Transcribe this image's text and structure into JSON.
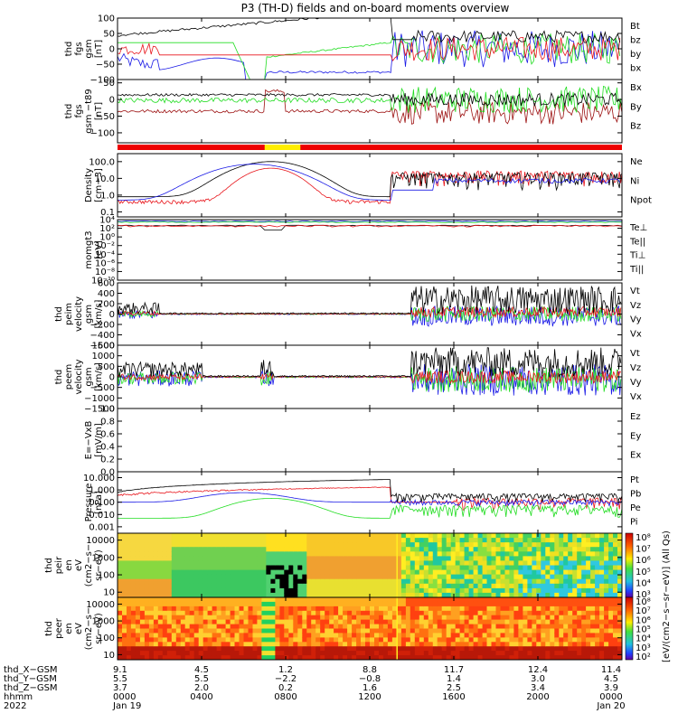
{
  "title": "P3 (TH-D) fields and on-board moments overview",
  "colors": {
    "black": "#000000",
    "red": "#e8151b",
    "green": "#22dd22",
    "blue": "#1a1ae6",
    "darkred": "#9c1010"
  },
  "chart_data": {
    "type": "line",
    "time_range_hours": [
      0,
      24
    ],
    "panels": [
      {
        "id": "fgs",
        "ylabel": [
          "thd",
          "fgs",
          "gsm",
          "[nT]"
        ],
        "ylim": [
          -100,
          100
        ],
        "yscale": "linear",
        "ticks": [
          "100",
          "50",
          "0",
          "−50",
          "−100"
        ],
        "tickvals": [
          100,
          50,
          0,
          -50,
          -100
        ],
        "legend": [
          {
            "label": "Bt",
            "color": "black"
          },
          {
            "label": "bz",
            "color": "red"
          },
          {
            "label": "by",
            "color": "green"
          },
          {
            "label": "bx",
            "color": "blue"
          }
        ]
      },
      {
        "id": "fgs-t89",
        "ylabel": [
          "thd",
          "fgs",
          "gsm −t89",
          "[nT]"
        ],
        "ylim": [
          -130,
          60
        ],
        "yscale": "linear",
        "ticks": [
          "50",
          "0",
          "−50",
          "−100"
        ],
        "tickvals": [
          50,
          0,
          -50,
          -100
        ],
        "legend": [
          {
            "label": "Bx",
            "color": "black"
          },
          {
            "label": "By",
            "color": "green"
          },
          {
            "label": "Bz",
            "color": "darkred"
          }
        ]
      },
      {
        "id": "density",
        "ylabel": [
          "Density",
          "[cm−3]"
        ],
        "ylim": [
          0.05,
          300
        ],
        "yscale": "log",
        "ticks": [
          "100.0",
          "10.0",
          "1.0",
          "0.1"
        ],
        "tickvals": [
          100,
          10,
          1,
          0.1
        ],
        "legend": [
          {
            "label": "Ne",
            "color": "red"
          },
          {
            "label": "Ni",
            "color": "black"
          },
          {
            "label": "Npot",
            "color": "blue"
          }
        ]
      },
      {
        "id": "temp",
        "ylabel": [
          "momgt3",
          "[eV]"
        ],
        "ylim": [
          1e-10,
          10000
        ],
        "yscale": "log",
        "ticks": [
          "10⁴",
          "10²",
          "10⁰",
          "10⁻²",
          "10⁻⁴",
          "10⁻⁶",
          "10⁻⁸",
          "10⁻¹⁰"
        ],
        "tickvals": [
          4,
          2,
          0,
          -2,
          -4,
          -6,
          -8,
          -10
        ],
        "legend": [
          {
            "label": "Te⊥",
            "color": "red"
          },
          {
            "label": "Te||",
            "color": "black"
          },
          {
            "label": "Ti⊥",
            "color": "blue"
          },
          {
            "label": "Ti||",
            "color": "green"
          }
        ]
      },
      {
        "id": "vi",
        "ylabel": [
          "thd",
          "peim",
          "velocity",
          "gsm",
          "[km/s]"
        ],
        "ylim": [
          -600,
          600
        ],
        "yscale": "linear",
        "ticks": [
          "600",
          "400",
          "200",
          "0",
          "−200",
          "−400",
          "−600"
        ],
        "tickvals": [
          600,
          400,
          200,
          0,
          -200,
          -400,
          -600
        ],
        "legend": [
          {
            "label": "Vt",
            "color": "black"
          },
          {
            "label": "Vz",
            "color": "red"
          },
          {
            "label": "Vy",
            "color": "green"
          },
          {
            "label": "Vx",
            "color": "blue"
          }
        ]
      },
      {
        "id": "ve",
        "ylabel": [
          "thd",
          "peem",
          "velocity",
          "gsm",
          "[km/s]"
        ],
        "ylim": [
          -1500,
          1500
        ],
        "yscale": "linear",
        "ticks": [
          "1500",
          "1000",
          "500",
          "0",
          "−500",
          "−1000",
          "−1500"
        ],
        "tickvals": [
          1500,
          1000,
          500,
          0,
          -500,
          -1000,
          -1500
        ],
        "legend": [
          {
            "label": "Vt",
            "color": "black"
          },
          {
            "label": "Vz",
            "color": "red"
          },
          {
            "label": "Vy",
            "color": "green"
          },
          {
            "label": "Vx",
            "color": "blue"
          }
        ]
      },
      {
        "id": "efield",
        "ylabel": [
          "E=−VxB",
          "[mV/m]"
        ],
        "ylim": [
          0,
          1
        ],
        "yscale": "linear",
        "ticks": [
          "1.0",
          "0.8",
          "0.6",
          "0.4",
          "0.2",
          "0.0"
        ],
        "tickvals": [
          1,
          0.8,
          0.6,
          0.4,
          0.2,
          0
        ],
        "legend": [
          {
            "label": "Ez",
            "color": "red"
          },
          {
            "label": "Ey",
            "color": "green"
          },
          {
            "label": "Ex",
            "color": "blue"
          }
        ]
      },
      {
        "id": "pressure",
        "ylabel": [
          "Pressure",
          "[nPa]"
        ],
        "ylim": [
          0.0003,
          30
        ],
        "yscale": "log",
        "ticks": [
          "10.000",
          "1.000",
          "0.100",
          "0.010",
          "0.001"
        ],
        "tickvals": [
          10,
          1,
          0.1,
          0.01,
          0.001
        ],
        "legend": [
          {
            "label": "Pt",
            "color": "black"
          },
          {
            "label": "Pb",
            "color": "red"
          },
          {
            "label": "Pe",
            "color": "green"
          },
          {
            "label": "Pi",
            "color": "blue"
          }
        ]
      },
      {
        "id": "ion-spec",
        "ylabel": [
          "thd",
          "peir",
          "en",
          "eV",
          "(cm2−s−",
          "sr−eV)"
        ],
        "ylim": [
          5,
          25000
        ],
        "yscale": "log",
        "ticks": [
          "10000",
          "1000",
          "100",
          "10"
        ],
        "tickvals": [
          10000,
          1000,
          100,
          10
        ],
        "legend": []
      },
      {
        "id": "ele-spec",
        "ylabel": [
          "thd",
          "peer",
          "en",
          "eV",
          "(cm2−s−",
          "sr−eV)"
        ],
        "ylim": [
          5,
          25000
        ],
        "yscale": "log",
        "ticks": [
          "10000",
          "1000",
          "100",
          "10"
        ],
        "tickvals": [
          10000,
          1000,
          100,
          10
        ],
        "legend": []
      }
    ],
    "colorbar": {
      "label": "[eV/(cm2−s−sr−eV)] (All Qs)",
      "ion_ticks": [
        "10⁸",
        "10⁷",
        "10⁶",
        "10⁵",
        "10⁴",
        "10³"
      ],
      "ele_ticks": [
        "10⁸",
        "10⁷",
        "10⁶",
        "10⁵",
        "10⁴",
        "10³",
        "10²"
      ]
    },
    "xaxis": {
      "rows": [
        {
          "label": "thd_X−GSM",
          "values": [
            "9.1",
            "4.5",
            "1.2",
            "8.8",
            "11.7",
            "12.4",
            "11.4"
          ]
        },
        {
          "label": "thd_Y−GSM",
          "values": [
            "5.5",
            "5.5",
            "−2.2",
            "−0.8",
            "1.4",
            "3.0",
            "4.5"
          ]
        },
        {
          "label": "thd_Z−GSM",
          "values": [
            "3.7",
            "2.0",
            "0.2",
            "1.6",
            "2.5",
            "3.4",
            "3.9"
          ]
        },
        {
          "label": "hhmm",
          "values": [
            "0000",
            "0400",
            "0800",
            "1200",
            "1600",
            "2000",
            "0000"
          ]
        },
        {
          "label": "2022",
          "values": [
            "Jan 19",
            "",
            "",
            "",
            "",
            "",
            "Jan 20"
          ]
        }
      ],
      "tick_hours": [
        0,
        4,
        8,
        12,
        16,
        20,
        24
      ]
    }
  }
}
